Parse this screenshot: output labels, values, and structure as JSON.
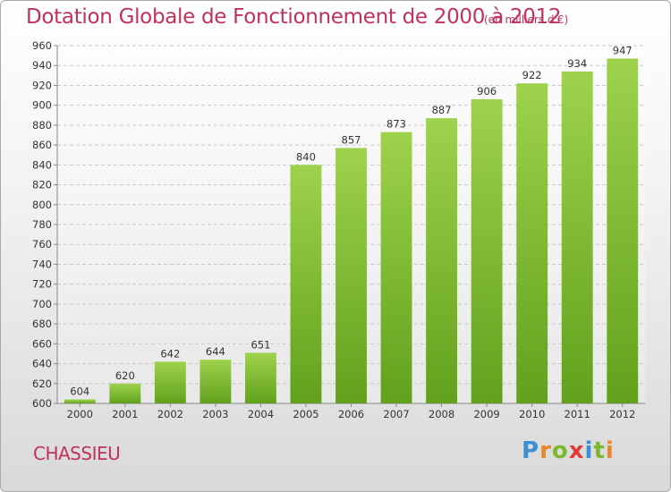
{
  "header": {
    "title": "Dotation Globale de Fonctionnement de 2000 à 2012",
    "subtitle": "(en milliers d'€)"
  },
  "footer": {
    "commune": "CHASSIEU",
    "logo": {
      "letters": [
        "P",
        "r",
        "o",
        "x",
        "i",
        "t",
        "i"
      ],
      "colors": [
        "#3b8fd4",
        "#e8862a",
        "#7bb82f",
        "#e23a3a",
        "#3b8fd4",
        "#7bb82f",
        "#e8862a"
      ]
    }
  },
  "chart_data": {
    "type": "bar",
    "title": "Dotation Globale de Fonctionnement de 2000 à 2012",
    "ylabel": "(en milliers d'€)",
    "categories": [
      "2000",
      "2001",
      "2002",
      "2003",
      "2004",
      "2005",
      "2006",
      "2007",
      "2008",
      "2009",
      "2010",
      "2011",
      "2012"
    ],
    "values": [
      604,
      620,
      642,
      644,
      651,
      840,
      857,
      873,
      887,
      906,
      922,
      934,
      947
    ],
    "ylim": [
      600,
      960
    ],
    "yticks": [
      600,
      620,
      640,
      660,
      680,
      700,
      720,
      740,
      760,
      780,
      800,
      820,
      840,
      860,
      880,
      900,
      920,
      940,
      960
    ],
    "grid": true,
    "bar_color": "#82c232"
  }
}
